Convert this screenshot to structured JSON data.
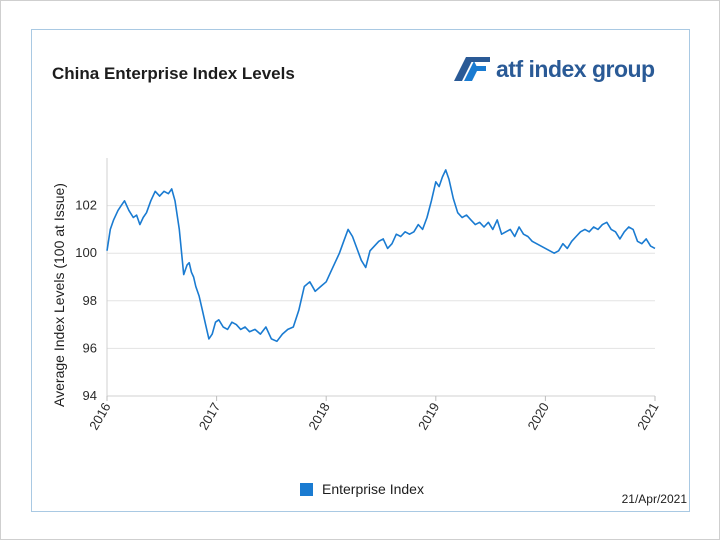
{
  "chart_data": {
    "type": "line",
    "title": "China Enterprise Index Levels",
    "ylabel": "Average Index Levels (100 at Issue)",
    "xlabel": "",
    "ylim": [
      94,
      104
    ],
    "yticks": [
      94,
      96,
      98,
      100,
      102
    ],
    "xlim": [
      2016.0,
      2021.0
    ],
    "xticks": [
      "2016",
      "2017",
      "2018",
      "2019",
      "2020",
      "2021"
    ],
    "grid": true,
    "legend_position": "bottom-center",
    "series": [
      {
        "name": "Enterprise Index",
        "color": "#1a7bd1",
        "x": [
          2016.0,
          2016.03,
          2016.06,
          2016.1,
          2016.13,
          2016.16,
          2016.2,
          2016.24,
          2016.27,
          2016.3,
          2016.33,
          2016.36,
          2016.4,
          2016.44,
          2016.48,
          2016.52,
          2016.56,
          2016.59,
          2016.62,
          2016.66,
          2016.7,
          2016.73,
          2016.75,
          2016.77,
          2016.79,
          2016.81,
          2016.84,
          2016.87,
          2016.9,
          2016.93,
          2016.96,
          2016.99,
          2017.02,
          2017.06,
          2017.1,
          2017.14,
          2017.18,
          2017.22,
          2017.26,
          2017.3,
          2017.35,
          2017.4,
          2017.45,
          2017.5,
          2017.55,
          2017.6,
          2017.65,
          2017.7,
          2017.75,
          2017.8,
          2017.85,
          2017.9,
          2017.95,
          2018.0,
          2018.04,
          2018.08,
          2018.12,
          2018.16,
          2018.2,
          2018.24,
          2018.28,
          2018.32,
          2018.36,
          2018.4,
          2018.44,
          2018.48,
          2018.52,
          2018.56,
          2018.6,
          2018.64,
          2018.68,
          2018.72,
          2018.76,
          2018.8,
          2018.84,
          2018.88,
          2018.92,
          2018.96,
          2019.0,
          2019.03,
          2019.06,
          2019.09,
          2019.12,
          2019.16,
          2019.2,
          2019.24,
          2019.28,
          2019.32,
          2019.36,
          2019.4,
          2019.44,
          2019.48,
          2019.52,
          2019.56,
          2019.6,
          2019.64,
          2019.68,
          2019.72,
          2019.76,
          2019.8,
          2019.84,
          2019.88,
          2019.92,
          2019.96,
          2020.0,
          2020.04,
          2020.08,
          2020.12,
          2020.16,
          2020.2,
          2020.24,
          2020.28,
          2020.32,
          2020.36,
          2020.4,
          2020.44,
          2020.48,
          2020.52,
          2020.56,
          2020.6,
          2020.64,
          2020.68,
          2020.72,
          2020.76,
          2020.8,
          2020.84,
          2020.88,
          2020.92,
          2020.96,
          2021.0
        ],
        "values": [
          100.1,
          101.0,
          101.4,
          101.8,
          102.0,
          102.2,
          101.8,
          101.5,
          101.6,
          101.2,
          101.5,
          101.7,
          102.2,
          102.6,
          102.4,
          102.6,
          102.5,
          102.7,
          102.2,
          101.0,
          99.1,
          99.5,
          99.6,
          99.2,
          99.0,
          98.6,
          98.2,
          97.6,
          97.0,
          96.4,
          96.6,
          97.1,
          97.2,
          96.9,
          96.8,
          97.1,
          97.0,
          96.8,
          96.9,
          96.7,
          96.8,
          96.6,
          96.9,
          96.4,
          96.3,
          96.6,
          96.8,
          96.9,
          97.6,
          98.6,
          98.8,
          98.4,
          98.6,
          98.8,
          99.2,
          99.6,
          100.0,
          100.5,
          101.0,
          100.7,
          100.2,
          99.7,
          99.4,
          100.1,
          100.3,
          100.5,
          100.6,
          100.2,
          100.4,
          100.8,
          100.7,
          100.9,
          100.8,
          100.9,
          101.2,
          101.0,
          101.5,
          102.2,
          103.0,
          102.8,
          103.2,
          103.5,
          103.1,
          102.3,
          101.7,
          101.5,
          101.6,
          101.4,
          101.2,
          101.3,
          101.1,
          101.3,
          101.0,
          101.4,
          100.8,
          100.9,
          101.0,
          100.7,
          101.1,
          100.8,
          100.7,
          100.5,
          100.4,
          100.3,
          100.2,
          100.1,
          100.0,
          100.1,
          100.4,
          100.2,
          100.5,
          100.7,
          100.9,
          101.0,
          100.9,
          101.1,
          101.0,
          101.2,
          101.3,
          101.0,
          100.9,
          100.6,
          100.9,
          101.1,
          101.0,
          100.5,
          100.4,
          100.6,
          100.3,
          100.2
        ]
      }
    ],
    "date_stamp": "21/Apr/2021"
  },
  "brand": {
    "logo_text": "atf index group",
    "logo_color": "#2a5a96",
    "icon": "atf-logo-icon"
  }
}
